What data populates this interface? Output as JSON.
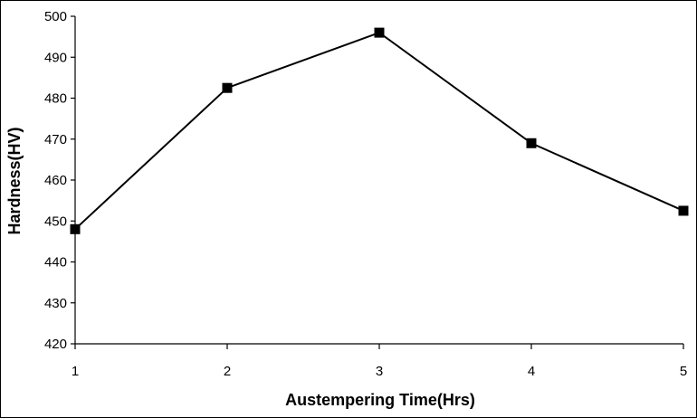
{
  "chart_data": {
    "type": "line",
    "title": "",
    "xlabel": "Austempering Time(Hrs)",
    "ylabel": "Hardness(HV)",
    "x": [
      1,
      2,
      3,
      4,
      5
    ],
    "x_ticks": [
      "1",
      "2",
      "3",
      "4",
      "5"
    ],
    "y_ticks": [
      "420",
      "430",
      "440",
      "450",
      "460",
      "470",
      "480",
      "490",
      "500"
    ],
    "ylim": [
      420,
      500
    ],
    "xlim": [
      1,
      5
    ],
    "grid": false,
    "legend": "none",
    "series": [
      {
        "values": [
          448,
          482.5,
          496,
          469,
          452.5
        ],
        "color": "#000000",
        "marker": "square"
      }
    ]
  }
}
